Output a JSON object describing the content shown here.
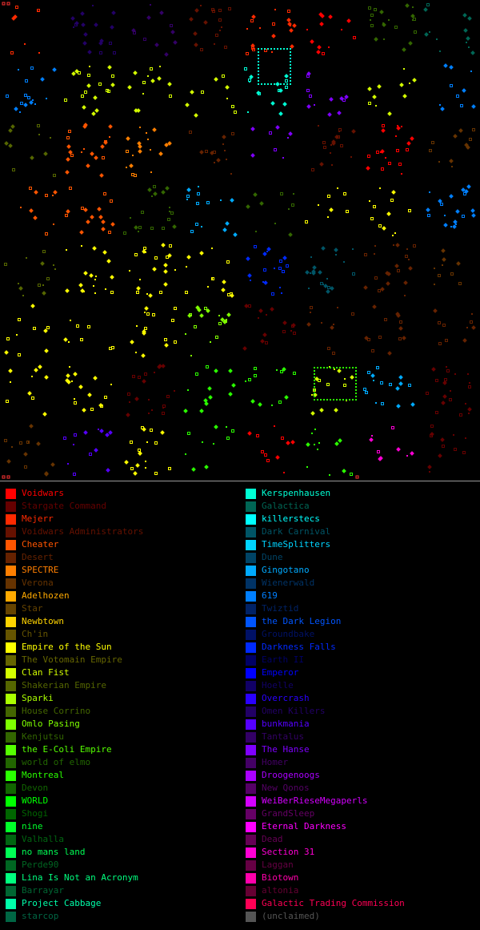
{
  "map": {
    "aria_label": "galaxy map",
    "columns": 8,
    "rows": 8,
    "cells": [
      [
        "Mejerr",
        "Omen Killers",
        "Tantalus",
        "Voidwars Administrators",
        "Mejerr",
        "Voidwars",
        "Kenjutsu",
        "Galactica"
      ],
      [
        "619",
        "Clan Fist",
        "Clan Fist",
        "Clan Fist",
        "Kerspenhausen",
        "the Hanse",
        "Clan Fist",
        "619"
      ],
      [
        "Shakerian Empire",
        "Cheater",
        "SPECTRE",
        "Desert",
        "the Hanse",
        "Voidwars Administrators",
        "Voidwars",
        "Verona"
      ],
      [
        "Cheater",
        "Cheater",
        "Kenjutsu",
        "Gingotano",
        "Kenjutsu",
        "Empire of the Sun",
        "Empire of the Sun",
        "619"
      ],
      [
        "Shakerian Empire",
        "Empire of the Sun",
        "Empire of the Sun",
        "Empire of the Sun",
        "Darkness Falls",
        "Dark Carnival",
        "Desert",
        "Verona"
      ],
      [
        "Empire of the Sun",
        "Empire of the Sun",
        "Empire of the Sun",
        "Omlo Pasing",
        "Stargate Command",
        "Desert",
        "Desert",
        "Desert"
      ],
      [
        "Empire of the Sun",
        "Empire of the Sun",
        "Stargate Command",
        "Montreal",
        "Montreal",
        "Clan Fist",
        "Gingotano",
        "Stargate Command"
      ],
      [
        "Verona",
        "Bunkmania",
        "Empire of the Sun",
        "Montreal",
        "Voidwars",
        "Montreal",
        "Section 31",
        "Stargate Command"
      ]
    ]
  },
  "legend": {
    "left": [
      {
        "name": "Voidwars",
        "color": "#ff0000"
      },
      {
        "name": "Stargate Command",
        "color": "#660000"
      },
      {
        "name": "Mejerr",
        "color": "#ff2a00"
      },
      {
        "name": "Voidwars Administrators",
        "color": "#661100"
      },
      {
        "name": "Cheater",
        "color": "#ff5500"
      },
      {
        "name": "Desert",
        "color": "#662200"
      },
      {
        "name": "SPECTRE",
        "color": "#ff7f00"
      },
      {
        "name": "Verona",
        "color": "#663300"
      },
      {
        "name": "Adelhozen",
        "color": "#ffaa00"
      },
      {
        "name": "Star",
        "color": "#664400"
      },
      {
        "name": "Newbtown",
        "color": "#ffd400"
      },
      {
        "name": "Ch'in",
        "color": "#665500"
      },
      {
        "name": "Empire of the Sun",
        "color": "#ffff00"
      },
      {
        "name": "The Votomain Empire",
        "color": "#666600"
      },
      {
        "name": "Clan Fist",
        "color": "#d4ff00"
      },
      {
        "name": "Shakerian Empire",
        "color": "#556600"
      },
      {
        "name": "Sparki",
        "color": "#aaff00"
      },
      {
        "name": "House Corrino",
        "color": "#446600"
      },
      {
        "name": "Omlo Pasing",
        "color": "#7fff00"
      },
      {
        "name": "Kenjutsu",
        "color": "#336600"
      },
      {
        "name": "the E-Coli Empire",
        "color": "#55ff00"
      },
      {
        "name": "world of elmo",
        "color": "#226600"
      },
      {
        "name": "Montreal",
        "color": "#2aff00"
      },
      {
        "name": "Devon",
        "color": "#116600"
      },
      {
        "name": "WORLD",
        "color": "#00ff00"
      },
      {
        "name": "Shogi",
        "color": "#006600"
      },
      {
        "name": "nine",
        "color": "#00ff2a"
      },
      {
        "name": "Valhalla",
        "color": "#006611"
      },
      {
        "name": "no mans land",
        "color": "#00ff55"
      },
      {
        "name": "Perde90",
        "color": "#006622"
      },
      {
        "name": "Lina Is Not an Acronym",
        "color": "#00ff7f"
      },
      {
        "name": "Barrayar",
        "color": "#006633"
      },
      {
        "name": "Project Cabbage",
        "color": "#00ffaa"
      },
      {
        "name": "starcop",
        "color": "#006644"
      }
    ],
    "right": [
      {
        "name": "Kerspenhausen",
        "color": "#00ffd4"
      },
      {
        "name": "Galactica",
        "color": "#006655"
      },
      {
        "name": "killerstecs",
        "color": "#00ffff"
      },
      {
        "name": "Dark Carnival",
        "color": "#005566"
      },
      {
        "name": "TimeSplitters",
        "color": "#00d4ff"
      },
      {
        "name": "Dune",
        "color": "#004466"
      },
      {
        "name": "Gingotano",
        "color": "#00aaff"
      },
      {
        "name": "Wienerwald",
        "color": "#003366"
      },
      {
        "name": "619",
        "color": "#007fff"
      },
      {
        "name": "Twiztid",
        "color": "#002266"
      },
      {
        "name": "the Dark Legion",
        "color": "#0055ff"
      },
      {
        "name": "Groundbake",
        "color": "#001166"
      },
      {
        "name": "Darkness Falls",
        "color": "#002aff"
      },
      {
        "name": "Earth II",
        "color": "#000066"
      },
      {
        "name": "Emperor",
        "color": "#0000ff"
      },
      {
        "name": "Hoelle",
        "color": "#110066"
      },
      {
        "name": "Overcrash",
        "color": "#2a00ff"
      },
      {
        "name": "Omen Killers",
        "color": "#220066"
      },
      {
        "name": "bunkmania",
        "color": "#5500ff"
      },
      {
        "name": "Tantalus",
        "color": "#330066"
      },
      {
        "name": "The Hanse",
        "color": "#7f00ff"
      },
      {
        "name": "Homer",
        "color": "#440066"
      },
      {
        "name": "Droogenoogs",
        "color": "#aa00ff"
      },
      {
        "name": "New Qonos",
        "color": "#550066"
      },
      {
        "name": "WeiBerRieseMegaperls",
        "color": "#d400ff"
      },
      {
        "name": "GrandSleep",
        "color": "#660066"
      },
      {
        "name": "Eternal Darkness",
        "color": "#ff00ff"
      },
      {
        "name": "Dead",
        "color": "#660055"
      },
      {
        "name": "Section 31",
        "color": "#ff00d4"
      },
      {
        "name": "Laggan",
        "color": "#660044"
      },
      {
        "name": "Biotown",
        "color": "#ff00aa"
      },
      {
        "name": "altonia",
        "color": "#660033"
      },
      {
        "name": "Galactic Trading Commission",
        "color": "#ff0055"
      },
      {
        "name": "(unclaimed)",
        "color": "#555555"
      }
    ]
  }
}
